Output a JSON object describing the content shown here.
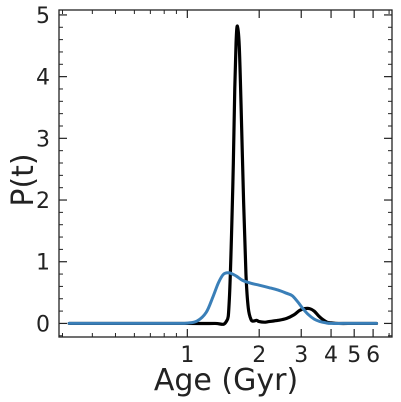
{
  "chart_data": {
    "type": "line",
    "xlabel": "Age (Gyr)",
    "ylabel": "P(t)",
    "x_scale": "log",
    "xlim": [
      0.29,
      7.2
    ],
    "ylim": [
      -0.22,
      5.08
    ],
    "x_ticks": [
      1,
      2,
      3,
      4,
      5,
      6
    ],
    "x_tick_labels": [
      "1",
      "2",
      "3",
      "4",
      "5",
      "6"
    ],
    "y_ticks": [
      0,
      1,
      2,
      3,
      4,
      5
    ],
    "y_tick_labels": [
      "0",
      "1",
      "2",
      "3",
      "4",
      "5"
    ],
    "grid": false,
    "series": [
      {
        "color": "#000000",
        "x": [
          0.32,
          0.6,
          1.0,
          1.3,
          1.45,
          1.5,
          1.55,
          1.58,
          1.6,
          1.62,
          1.65,
          1.68,
          1.72,
          1.76,
          1.8,
          1.85,
          1.9,
          1.95,
          2.0,
          2.1,
          2.2,
          2.4,
          2.6,
          2.8,
          2.95,
          3.1,
          3.25,
          3.4,
          3.55,
          3.7,
          3.85,
          4.0,
          4.3,
          5.0,
          6.0,
          6.2
        ],
        "y": [
          0,
          0,
          0,
          0,
          0.02,
          0.4,
          2.2,
          3.8,
          4.55,
          4.82,
          4.5,
          3.5,
          2.0,
          0.8,
          0.25,
          0.06,
          0.04,
          0.05,
          0.03,
          0.02,
          0.03,
          0.05,
          0.08,
          0.14,
          0.21,
          0.24,
          0.24,
          0.2,
          0.12,
          0.06,
          0.02,
          0.01,
          0,
          0,
          0,
          0
        ]
      },
      {
        "color": "#3a7fb8",
        "x": [
          0.32,
          0.6,
          0.9,
          1.0,
          1.1,
          1.2,
          1.28,
          1.35,
          1.42,
          1.5,
          1.6,
          1.7,
          1.85,
          2.0,
          2.2,
          2.4,
          2.6,
          2.75,
          2.9,
          3.05,
          3.2,
          3.4,
          3.6,
          3.8,
          4.0,
          4.5,
          5.0,
          6.0,
          6.2
        ],
        "y": [
          0,
          0,
          0,
          0.005,
          0.04,
          0.18,
          0.43,
          0.66,
          0.8,
          0.82,
          0.77,
          0.7,
          0.65,
          0.62,
          0.58,
          0.54,
          0.49,
          0.45,
          0.35,
          0.24,
          0.15,
          0.07,
          0.03,
          0.01,
          0,
          0,
          0,
          0,
          0
        ]
      }
    ]
  }
}
